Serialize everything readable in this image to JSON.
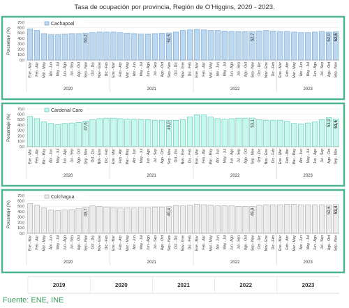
{
  "title": "Tasa de ocupación por provincia, Región de O’Higgins, 2020 - 2023.",
  "bottom_years": [
    "2019",
    "2020",
    "2021",
    "2022",
    "2023"
  ],
  "source": "Fuente: ENE, INE",
  "chart_data": [
    {
      "type": "bar",
      "ylabel": "Porcentaje (%)",
      "categories": [
        "Ene - Mar",
        "Feb - Abr",
        "Mar - May",
        "Abr - Jun",
        "May - Jul",
        "Jun - Ago",
        "Jul - Sep",
        "Ago - Oct",
        "Sep - Nov",
        "Oct - Dic",
        "Nov - Ene",
        "Dic - Feb",
        "Ene - Mar",
        "Feb - Abr",
        "Mar - May",
        "Abr - Jun",
        "May - Jul",
        "Jun - Ago",
        "Jul - Sep",
        "Ago - Oct",
        "Sep - Nov",
        "Oct - Dic",
        "Nov - Ene",
        "Dic - Feb",
        "Ene - Mar",
        "Feb - Abr",
        "Mar - May",
        "Abr - Jun",
        "May - Jul",
        "Jun - Ago",
        "Jul - Sep",
        "Ago - Oct",
        "Sep - Nov",
        "Oct - Dic",
        "Nov - Ene",
        "Dic - Feb",
        "Ene - Mar",
        "Feb - Abr",
        "Mar - May",
        "Abr - Jun",
        "May - Jul",
        "Jun - Ago",
        "Jul - Sep",
        "Ago - Oct",
        "Sep - Nov"
      ],
      "years": [
        "2020",
        "2021",
        "2022",
        "2023"
      ],
      "series": [
        {
          "name": "Cachapoal",
          "color": "#bdd7ee",
          "stroke": "#5b9bd5",
          "values": [
            58,
            55,
            49,
            47,
            47,
            48,
            49,
            49,
            50.2,
            51,
            52,
            52,
            52,
            51,
            50,
            49,
            48,
            48,
            49,
            50,
            50.5,
            52,
            55,
            56,
            57,
            56,
            55,
            55,
            54,
            53,
            53,
            53,
            52.7,
            54,
            55,
            54,
            53,
            53,
            52,
            51,
            51,
            52,
            53,
            52.0,
            52.5
          ],
          "value_labels": [
            null,
            null,
            null,
            null,
            null,
            null,
            null,
            null,
            "50,2",
            null,
            null,
            null,
            null,
            null,
            null,
            null,
            null,
            null,
            null,
            null,
            "50,5",
            null,
            null,
            null,
            null,
            null,
            null,
            null,
            null,
            null,
            null,
            null,
            "52,7",
            null,
            null,
            null,
            null,
            null,
            null,
            null,
            null,
            null,
            null,
            "52,0",
            "52,5"
          ]
        }
      ],
      "ylim": [
        0,
        70
      ],
      "yticks": [
        {
          "value": 0,
          "label": "0,0"
        },
        {
          "value": 10,
          "label": "10,0"
        },
        {
          "value": 20,
          "label": "20,0"
        },
        {
          "value": 30,
          "label": "30,0"
        },
        {
          "value": 40,
          "label": "40,0"
        },
        {
          "value": 50,
          "label": "50,0"
        },
        {
          "value": 60,
          "label": "60,0"
        },
        {
          "value": 70,
          "label": "70,0"
        }
      ],
      "grid": true
    },
    {
      "type": "bar",
      "ylabel": "Porcentaje (%)",
      "categories": [
        "Ene - Mar",
        "Feb - Abr",
        "Mar - May",
        "Abr - Jun",
        "May - Jul",
        "Jun - Ago",
        "Jul - Sep",
        "Ago - Oct",
        "Sep - Nov",
        "Oct - Dic",
        "Nov - Ene",
        "Dic - Feb",
        "Ene - Mar",
        "Feb - Abr",
        "Mar - May",
        "Abr - Jun",
        "May - Jul",
        "Jun - Ago",
        "Jul - Sep",
        "Ago - Oct",
        "Sep - Nov",
        "Oct - Dic",
        "Nov - Ene",
        "Dic - Feb",
        "Ene - Mar",
        "Feb - Abr",
        "Mar - May",
        "Abr - Jun",
        "May - Jul",
        "Jun - Ago",
        "Jul - Sep",
        "Ago - Oct",
        "Sep - Nov",
        "Oct - Dic",
        "Nov - Ene",
        "Dic - Feb",
        "Ene - Mar",
        "Feb - Abr",
        "Mar - May",
        "Abr - Jun",
        "May - Jul",
        "Jun - Ago",
        "Jul - Sep",
        "Ago - Oct",
        "Sep - Nov"
      ],
      "years": [
        "2020",
        "2021",
        "2022",
        "2023"
      ],
      "series": [
        {
          "name": "Cardenal Caro",
          "color": "#c8f7ee",
          "stroke": "#3cbfa5",
          "values": [
            56,
            52,
            46,
            43,
            41,
            43,
            44,
            45,
            47.6,
            50,
            52,
            53,
            53,
            52,
            51,
            51,
            50,
            50,
            49,
            49,
            49.0,
            49,
            50,
            55,
            59,
            59,
            55,
            52,
            51,
            52,
            53,
            53,
            53.1,
            50,
            49,
            49,
            49,
            47,
            43,
            42,
            44,
            46,
            50,
            53.9,
            51.6
          ],
          "value_labels": [
            null,
            null,
            null,
            null,
            null,
            null,
            null,
            null,
            "47,6",
            null,
            null,
            null,
            null,
            null,
            null,
            null,
            null,
            null,
            null,
            null,
            "49,0",
            null,
            null,
            null,
            null,
            null,
            null,
            null,
            null,
            null,
            null,
            null,
            "53,1",
            null,
            null,
            null,
            null,
            null,
            null,
            null,
            null,
            null,
            null,
            "53,9",
            "51,6"
          ]
        }
      ],
      "ylim": [
        0,
        70
      ],
      "yticks": [
        {
          "value": 0,
          "label": "0,0"
        },
        {
          "value": 10,
          "label": "10,0"
        },
        {
          "value": 20,
          "label": "20,0"
        },
        {
          "value": 30,
          "label": "30,0"
        },
        {
          "value": 40,
          "label": "40,0"
        },
        {
          "value": 50,
          "label": "50,0"
        },
        {
          "value": 60,
          "label": "60,0"
        },
        {
          "value": 70,
          "label": "70,0"
        }
      ],
      "grid": true
    },
    {
      "type": "bar",
      "ylabel": "Porcentaje (%)",
      "categories": [
        "Ene - Mar",
        "Feb - Abr",
        "Mar - May",
        "Abr - Jun",
        "May - Jul",
        "Jun - Ago",
        "Jul - Sep",
        "Ago - Oct",
        "Sep - Nov",
        "Oct - Dic",
        "Nov - Ene",
        "Dic - Feb",
        "Ene - Mar",
        "Feb - Abr",
        "Mar - May",
        "Abr - Jun",
        "May - Jul",
        "Jun - Ago",
        "Jul - Sep",
        "Ago - Oct",
        "Sep - Nov",
        "Oct - Dic",
        "Nov - Ene",
        "Dic - Feb",
        "Ene - Mar",
        "Feb - Abr",
        "Mar - May",
        "Abr - Jun",
        "May - Jul",
        "Jun - Ago",
        "Jul - Sep",
        "Ago - Oct",
        "Sep - Nov",
        "Oct - Dic",
        "Nov - Ene",
        "Dic - Feb",
        "Ene - Mar",
        "Feb - Abr",
        "Mar - May",
        "Abr - Jun",
        "May - Jul",
        "Jun - Ago",
        "Jul - Sep",
        "Ago - Oct",
        "Sep - Nov"
      ],
      "years": [
        "2020",
        "2021",
        "2022",
        "2023"
      ],
      "series": [
        {
          "name": "Colchagua",
          "color": "#ececec",
          "stroke": "#9a9a9a",
          "values": [
            55,
            52,
            47,
            43,
            42,
            43,
            44,
            46,
            48.7,
            51,
            50,
            49,
            48,
            47,
            47,
            47,
            48,
            48,
            49,
            49,
            49.4,
            51,
            51,
            52,
            54,
            53,
            52,
            51,
            51,
            51,
            50,
            50,
            49.9,
            52,
            53,
            53,
            53,
            54,
            54,
            53,
            53,
            53,
            53,
            52.6,
            53.4
          ],
          "value_labels": [
            null,
            null,
            null,
            null,
            null,
            null,
            null,
            null,
            "48,7",
            null,
            null,
            null,
            null,
            null,
            null,
            null,
            null,
            null,
            null,
            null,
            "49,4",
            null,
            null,
            null,
            null,
            null,
            null,
            null,
            null,
            null,
            null,
            null,
            "49,9",
            null,
            null,
            null,
            null,
            null,
            null,
            null,
            null,
            null,
            null,
            "52,6",
            "53,4"
          ]
        }
      ],
      "ylim": [
        0,
        70
      ],
      "yticks": [
        {
          "value": 0,
          "label": "0,0"
        },
        {
          "value": 10,
          "label": "10,0"
        },
        {
          "value": 20,
          "label": "20,0"
        },
        {
          "value": 30,
          "label": "30,0"
        },
        {
          "value": 40,
          "label": "40,0"
        },
        {
          "value": 50,
          "label": "50,0"
        },
        {
          "value": 60,
          "label": "60,0"
        },
        {
          "value": 70,
          "label": "70,0"
        }
      ],
      "grid": true
    }
  ]
}
